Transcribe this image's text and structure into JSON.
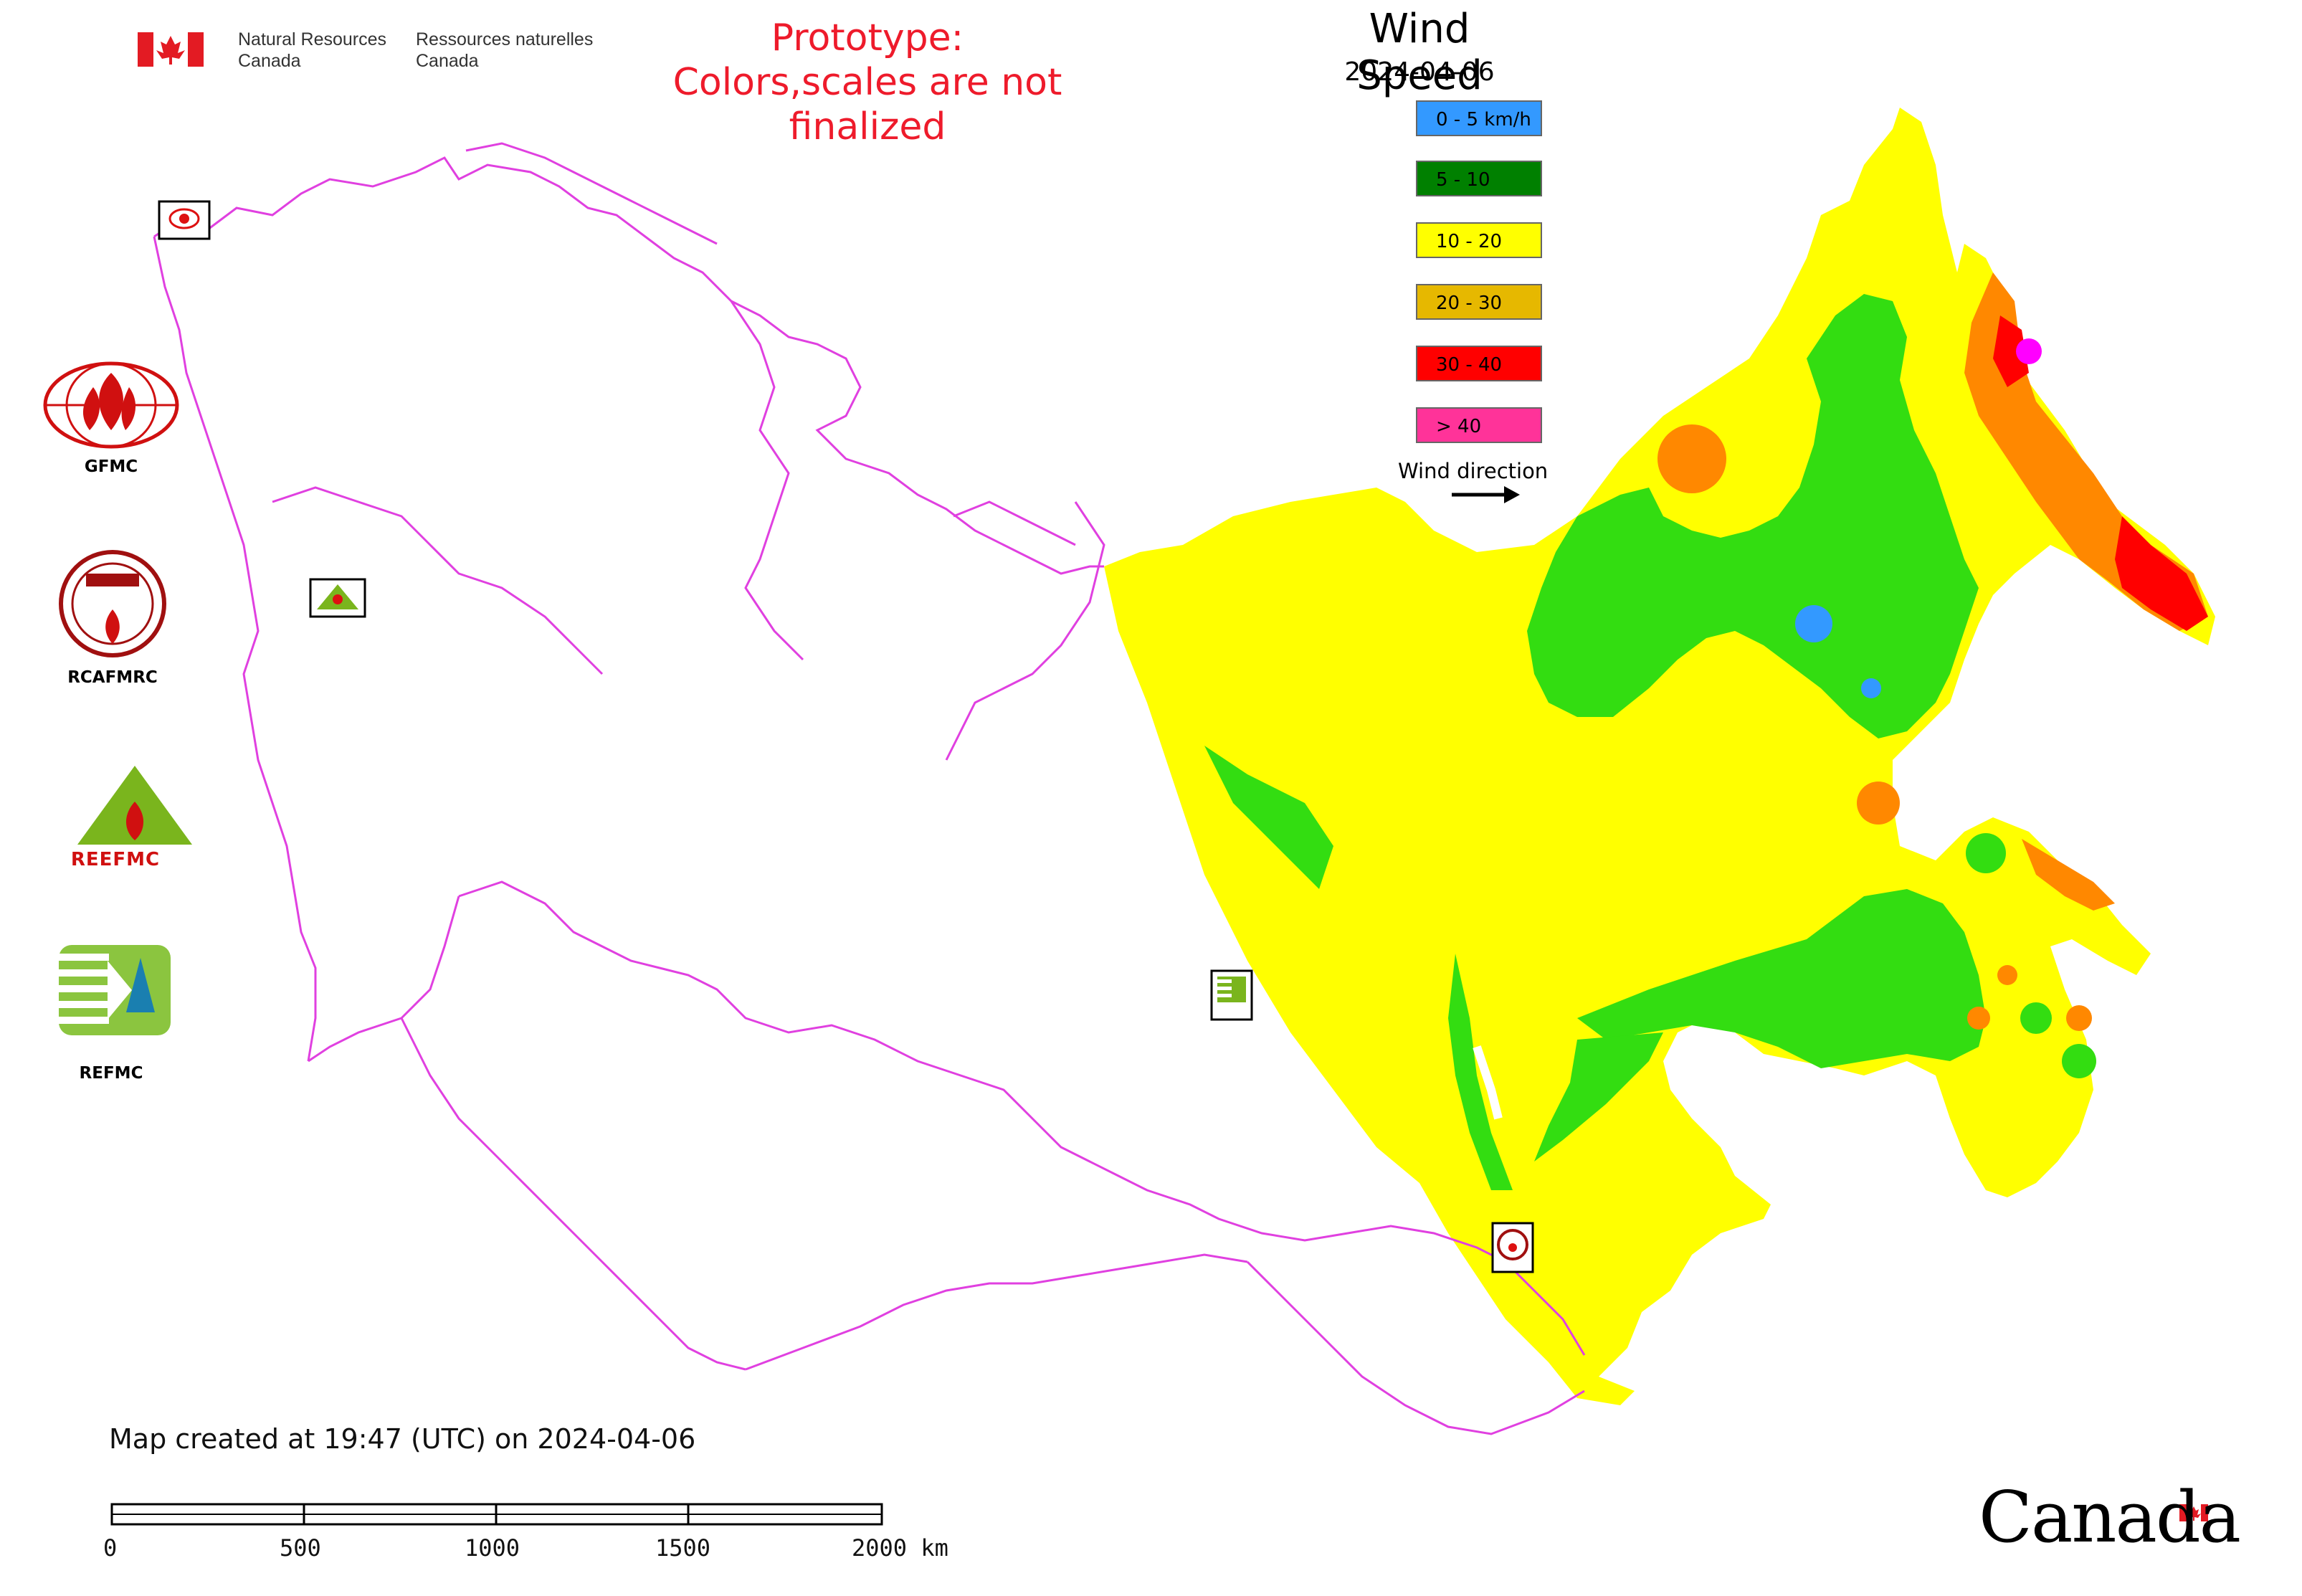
{
  "header": {
    "org_name_en_line1": "Natural Resources",
    "org_name_en_line2": "Canada",
    "org_name_fr_line1": "Ressources naturelles",
    "org_name_fr_line2": "Canada",
    "prototype_line1": "Prototype:",
    "prototype_line2": "Colors,scales are not finalized"
  },
  "map": {
    "title": "Wind Speed",
    "date": "2024-04-06",
    "background_color": "#ffffff",
    "border_color": "#e040e0"
  },
  "legend": {
    "items": [
      {
        "label": "0 - 5 km/h",
        "color": "#3399ff"
      },
      {
        "label": "5 - 10",
        "color": "#008000"
      },
      {
        "label": "10 - 20",
        "color": "#ffff00"
      },
      {
        "label": "20 - 30",
        "color": "#e6b800"
      },
      {
        "label": "30 - 40",
        "color": "#ff0000"
      },
      {
        "label": "> 40",
        "color": "#ff3399"
      }
    ],
    "wind_direction_label": "Wind direction"
  },
  "organizations": {
    "gfmc": "GFMC",
    "rcafmrc": "RCAFMRC",
    "reefmc": "REEFMC",
    "refmc": "REFMC",
    "reefmc_logo_text": "REEFMC"
  },
  "colors": {
    "calm_blue": "#3399ff",
    "green": "#00dd00",
    "yellow": "#ffff00",
    "orange": "#ff8800",
    "red": "#ff0000",
    "magenta": "#ff00ff"
  },
  "footer": {
    "created_text": "Map created at 19:47 (UTC) on 2024-04-06"
  },
  "scale_bar": {
    "labels": [
      "0",
      "500",
      "1000",
      "1500",
      "2000 km"
    ]
  },
  "wordmark": {
    "text": "Canada"
  }
}
